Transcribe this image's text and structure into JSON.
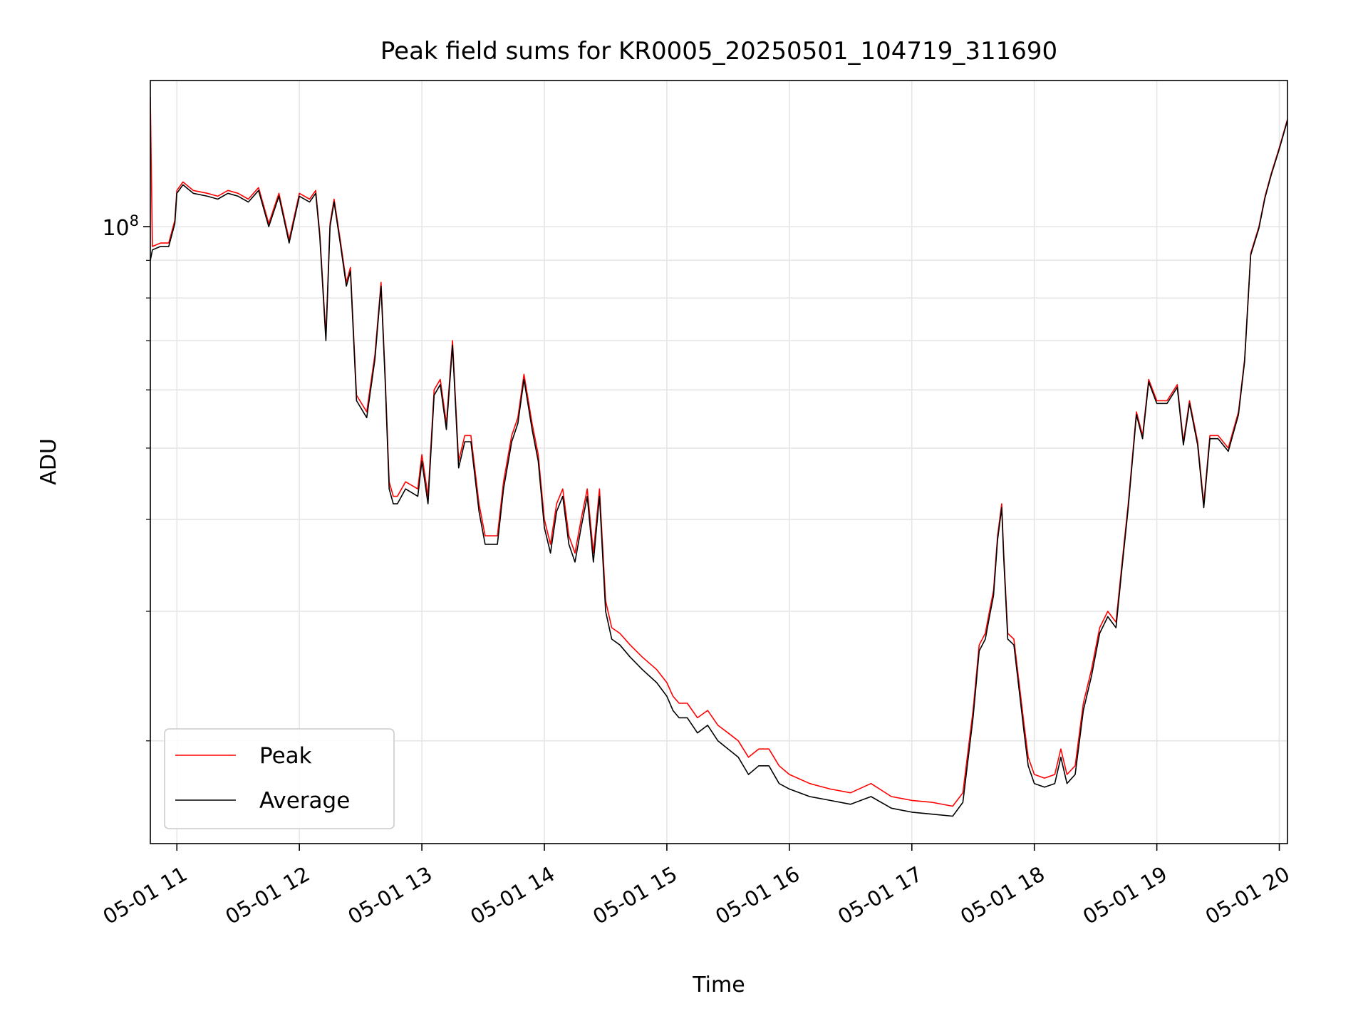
{
  "chart_data": {
    "type": "line",
    "title": "Peak field sums for KR0005_20250501_104719_311690",
    "xlabel": "Time",
    "ylabel": "ADU",
    "yscale": "log",
    "grid": true,
    "legend_position": "lower-left",
    "x_tick_labels": [
      "05-01 11",
      "05-01 12",
      "05-01 13",
      "05-01 14",
      "05-01 15",
      "05-01 16",
      "05-01 17",
      "05-01 18",
      "05-01 19",
      "05-01 20"
    ],
    "x_ticks": [
      "2025-05-01 11:00",
      "2025-05-01 12:00",
      "2025-05-01 13:00",
      "2025-05-01 14:00",
      "2025-05-01 15:00",
      "2025-05-01 16:00",
      "2025-05-01 17:00",
      "2025-05-01 18:00",
      "2025-05-01 19:00",
      "2025-05-01 20:00"
    ],
    "xlim": [
      "2025-05-01 10:47",
      "2025-05-01 20:04"
    ],
    "y_major_tick_label": {
      "base": "10",
      "exponent": "8"
    },
    "y_major_tick_value": 100000000,
    "y_minor_ticks": [
      20000000,
      30000000,
      40000000,
      50000000,
      60000000,
      70000000,
      80000000,
      90000000
    ],
    "ylim": [
      14500000,
      158000000
    ],
    "series": [
      {
        "name": "Peak",
        "color": "#ff0000",
        "x": [
          "2025-05-01 10:47",
          "2025-05-01 10:48",
          "2025-05-01 10:52",
          "2025-05-01 10:56",
          "2025-05-01 10:59",
          "2025-05-01 11:00",
          "2025-05-01 11:03",
          "2025-05-01 11:08",
          "2025-05-01 11:15",
          "2025-05-01 11:20",
          "2025-05-01 11:25",
          "2025-05-01 11:30",
          "2025-05-01 11:35",
          "2025-05-01 11:40",
          "2025-05-01 11:45",
          "2025-05-01 11:50",
          "2025-05-01 11:55",
          "2025-05-01 12:00",
          "2025-05-01 12:05",
          "2025-05-01 12:08",
          "2025-05-01 12:10",
          "2025-05-01 12:13",
          "2025-05-01 12:15",
          "2025-05-01 12:17",
          "2025-05-01 12:20",
          "2025-05-01 12:23",
          "2025-05-01 12:25",
          "2025-05-01 12:28",
          "2025-05-01 12:33",
          "2025-05-01 12:37",
          "2025-05-01 12:40",
          "2025-05-01 12:42",
          "2025-05-01 12:44",
          "2025-05-01 12:46",
          "2025-05-01 12:48",
          "2025-05-01 12:52",
          "2025-05-01 12:58",
          "2025-05-01 13:00",
          "2025-05-01 13:03",
          "2025-05-01 13:06",
          "2025-05-01 13:09",
          "2025-05-01 13:12",
          "2025-05-01 13:15",
          "2025-05-01 13:18",
          "2025-05-01 13:21",
          "2025-05-01 13:24",
          "2025-05-01 13:28",
          "2025-05-01 13:31",
          "2025-05-01 13:34",
          "2025-05-01 13:37",
          "2025-05-01 13:40",
          "2025-05-01 13:44",
          "2025-05-01 13:47",
          "2025-05-01 13:50",
          "2025-05-01 13:54",
          "2025-05-01 13:57",
          "2025-05-01 14:00",
          "2025-05-01 14:03",
          "2025-05-01 14:06",
          "2025-05-01 14:09",
          "2025-05-01 14:12",
          "2025-05-01 14:15",
          "2025-05-01 14:18",
          "2025-05-01 14:21",
          "2025-05-01 14:24",
          "2025-05-01 14:27",
          "2025-05-01 14:30",
          "2025-05-01 14:33",
          "2025-05-01 14:37",
          "2025-05-01 14:42",
          "2025-05-01 14:48",
          "2025-05-01 14:55",
          "2025-05-01 15:00",
          "2025-05-01 15:03",
          "2025-05-01 15:06",
          "2025-05-01 15:10",
          "2025-05-01 15:15",
          "2025-05-01 15:20",
          "2025-05-01 15:25",
          "2025-05-01 15:30",
          "2025-05-01 15:35",
          "2025-05-01 15:40",
          "2025-05-01 15:45",
          "2025-05-01 15:50",
          "2025-05-01 15:55",
          "2025-05-01 16:00",
          "2025-05-01 16:10",
          "2025-05-01 16:20",
          "2025-05-01 16:30",
          "2025-05-01 16:40",
          "2025-05-01 16:50",
          "2025-05-01 17:00",
          "2025-05-01 17:10",
          "2025-05-01 17:20",
          "2025-05-01 17:25",
          "2025-05-01 17:30",
          "2025-05-01 17:33",
          "2025-05-01 17:36",
          "2025-05-01 17:38",
          "2025-05-01 17:40",
          "2025-05-01 17:42",
          "2025-05-01 17:44",
          "2025-05-01 17:45",
          "2025-05-01 17:47",
          "2025-05-01 17:50",
          "2025-05-01 17:55",
          "2025-05-01 17:57",
          "2025-05-01 18:00",
          "2025-05-01 18:05",
          "2025-05-01 18:10",
          "2025-05-01 18:13",
          "2025-05-01 18:16",
          "2025-05-01 18:20",
          "2025-05-01 18:24",
          "2025-05-01 18:28",
          "2025-05-01 18:32",
          "2025-05-01 18:36",
          "2025-05-01 18:40",
          "2025-05-01 18:43",
          "2025-05-01 18:46",
          "2025-05-01 18:50",
          "2025-05-01 18:53",
          "2025-05-01 18:56",
          "2025-05-01 19:00",
          "2025-05-01 19:05",
          "2025-05-01 19:10",
          "2025-05-01 19:13",
          "2025-05-01 19:16",
          "2025-05-01 19:20",
          "2025-05-01 19:23",
          "2025-05-01 19:26",
          "2025-05-01 19:30",
          "2025-05-01 19:35",
          "2025-05-01 19:40",
          "2025-05-01 19:43",
          "2025-05-01 19:46",
          "2025-05-01 19:50",
          "2025-05-01 19:53",
          "2025-05-01 19:56",
          "2025-05-01 20:00",
          "2025-05-01 20:04"
        ],
        "values": [
          150000000,
          94000000,
          95000000,
          95000000,
          102000000,
          112000000,
          115000000,
          112000000,
          111000000,
          110000000,
          112000000,
          111000000,
          109000000,
          113000000,
          101000000,
          111000000,
          96000000,
          111000000,
          109000000,
          112000000,
          98000000,
          71000000,
          101000000,
          109000000,
          96000000,
          84000000,
          88000000,
          59000000,
          56000000,
          67000000,
          84000000,
          63000000,
          45000000,
          43000000,
          43000000,
          45000000,
          44000000,
          49000000,
          43000000,
          60000000,
          62000000,
          54000000,
          70000000,
          48000000,
          52000000,
          52000000,
          42000000,
          38000000,
          38000000,
          38000000,
          45000000,
          52000000,
          55000000,
          63000000,
          54000000,
          49000000,
          40000000,
          37000000,
          42000000,
          44000000,
          38000000,
          36000000,
          40000000,
          44000000,
          36000000,
          44000000,
          31000000,
          28500000,
          28000000,
          27000000,
          26000000,
          25000000,
          24000000,
          23000000,
          22500000,
          22500000,
          21500000,
          22000000,
          21000000,
          20500000,
          20000000,
          19000000,
          19500000,
          19500000,
          18500000,
          18000000,
          17500000,
          17200000,
          17000000,
          17500000,
          16800000,
          16600000,
          16500000,
          16300000,
          17000000,
          22000000,
          27000000,
          28000000,
          30000000,
          32000000,
          38000000,
          42000000,
          36000000,
          28000000,
          27500000,
          21000000,
          19000000,
          18000000,
          17800000,
          18000000,
          19500000,
          18000000,
          18500000,
          22500000,
          25000000,
          28500000,
          30000000,
          29000000,
          35000000,
          42000000,
          56000000,
          52000000,
          62000000,
          58000000,
          58000000,
          61000000,
          51000000,
          58000000,
          51000000,
          42000000,
          52000000,
          52000000,
          50000000,
          56000000,
          66000000,
          92000000,
          100000000,
          110000000,
          118000000,
          128000000,
          140000000
        ]
      },
      {
        "name": "Average",
        "color": "#000000",
        "x": [
          "2025-05-01 10:47",
          "2025-05-01 10:48",
          "2025-05-01 10:52",
          "2025-05-01 10:56",
          "2025-05-01 10:59",
          "2025-05-01 11:00",
          "2025-05-01 11:03",
          "2025-05-01 11:08",
          "2025-05-01 11:15",
          "2025-05-01 11:20",
          "2025-05-01 11:25",
          "2025-05-01 11:30",
          "2025-05-01 11:35",
          "2025-05-01 11:40",
          "2025-05-01 11:45",
          "2025-05-01 11:50",
          "2025-05-01 11:55",
          "2025-05-01 12:00",
          "2025-05-01 12:05",
          "2025-05-01 12:08",
          "2025-05-01 12:10",
          "2025-05-01 12:13",
          "2025-05-01 12:15",
          "2025-05-01 12:17",
          "2025-05-01 12:20",
          "2025-05-01 12:23",
          "2025-05-01 12:25",
          "2025-05-01 12:28",
          "2025-05-01 12:33",
          "2025-05-01 12:37",
          "2025-05-01 12:40",
          "2025-05-01 12:42",
          "2025-05-01 12:44",
          "2025-05-01 12:46",
          "2025-05-01 12:48",
          "2025-05-01 12:52",
          "2025-05-01 12:58",
          "2025-05-01 13:00",
          "2025-05-01 13:03",
          "2025-05-01 13:06",
          "2025-05-01 13:09",
          "2025-05-01 13:12",
          "2025-05-01 13:15",
          "2025-05-01 13:18",
          "2025-05-01 13:21",
          "2025-05-01 13:24",
          "2025-05-01 13:28",
          "2025-05-01 13:31",
          "2025-05-01 13:34",
          "2025-05-01 13:37",
          "2025-05-01 13:40",
          "2025-05-01 13:44",
          "2025-05-01 13:47",
          "2025-05-01 13:50",
          "2025-05-01 13:54",
          "2025-05-01 13:57",
          "2025-05-01 14:00",
          "2025-05-01 14:03",
          "2025-05-01 14:06",
          "2025-05-01 14:09",
          "2025-05-01 14:12",
          "2025-05-01 14:15",
          "2025-05-01 14:18",
          "2025-05-01 14:21",
          "2025-05-01 14:24",
          "2025-05-01 14:27",
          "2025-05-01 14:30",
          "2025-05-01 14:33",
          "2025-05-01 14:37",
          "2025-05-01 14:42",
          "2025-05-01 14:48",
          "2025-05-01 14:55",
          "2025-05-01 15:00",
          "2025-05-01 15:03",
          "2025-05-01 15:06",
          "2025-05-01 15:10",
          "2025-05-01 15:15",
          "2025-05-01 15:20",
          "2025-05-01 15:25",
          "2025-05-01 15:30",
          "2025-05-01 15:35",
          "2025-05-01 15:40",
          "2025-05-01 15:45",
          "2025-05-01 15:50",
          "2025-05-01 15:55",
          "2025-05-01 16:00",
          "2025-05-01 16:10",
          "2025-05-01 16:20",
          "2025-05-01 16:30",
          "2025-05-01 16:40",
          "2025-05-01 16:50",
          "2025-05-01 17:00",
          "2025-05-01 17:10",
          "2025-05-01 17:20",
          "2025-05-01 17:25",
          "2025-05-01 17:30",
          "2025-05-01 17:33",
          "2025-05-01 17:36",
          "2025-05-01 17:38",
          "2025-05-01 17:40",
          "2025-05-01 17:42",
          "2025-05-01 17:44",
          "2025-05-01 17:45",
          "2025-05-01 17:47",
          "2025-05-01 17:50",
          "2025-05-01 17:55",
          "2025-05-01 17:57",
          "2025-05-01 18:00",
          "2025-05-01 18:05",
          "2025-05-01 18:10",
          "2025-05-01 18:13",
          "2025-05-01 18:16",
          "2025-05-01 18:20",
          "2025-05-01 18:24",
          "2025-05-01 18:28",
          "2025-05-01 18:32",
          "2025-05-01 18:36",
          "2025-05-01 18:40",
          "2025-05-01 18:43",
          "2025-05-01 18:46",
          "2025-05-01 18:50",
          "2025-05-01 18:53",
          "2025-05-01 18:56",
          "2025-05-01 19:00",
          "2025-05-01 19:05",
          "2025-05-01 19:10",
          "2025-05-01 19:13",
          "2025-05-01 19:16",
          "2025-05-01 19:20",
          "2025-05-01 19:23",
          "2025-05-01 19:26",
          "2025-05-01 19:30",
          "2025-05-01 19:35",
          "2025-05-01 19:40",
          "2025-05-01 19:43",
          "2025-05-01 19:46",
          "2025-05-01 19:50",
          "2025-05-01 19:53",
          "2025-05-01 19:56",
          "2025-05-01 20:00",
          "2025-05-01 20:04"
        ],
        "values": [
          90000000,
          93000000,
          94000000,
          94000000,
          101000000,
          111000000,
          114000000,
          111000000,
          110000000,
          109000000,
          111000000,
          110000000,
          108000000,
          112000000,
          100000000,
          110000000,
          95000000,
          110000000,
          108000000,
          111000000,
          97000000,
          70000000,
          100000000,
          108000000,
          95000000,
          83000000,
          87000000,
          58000000,
          55000000,
          66000000,
          83000000,
          62000000,
          44000000,
          42000000,
          42000000,
          44000000,
          43000000,
          48000000,
          42000000,
          59000000,
          61000000,
          53000000,
          69000000,
          47000000,
          51000000,
          51000000,
          41000000,
          37000000,
          37000000,
          37000000,
          44000000,
          51000000,
          54000000,
          62000000,
          53000000,
          48000000,
          39000000,
          36000000,
          41000000,
          43000000,
          37000000,
          35000000,
          39000000,
          43000000,
          35000000,
          43000000,
          30000000,
          27500000,
          27000000,
          26000000,
          25000000,
          24000000,
          23000000,
          22000000,
          21500000,
          21500000,
          20500000,
          21000000,
          20000000,
          19500000,
          19000000,
          18000000,
          18500000,
          18500000,
          17500000,
          17200000,
          16800000,
          16600000,
          16400000,
          16800000,
          16200000,
          16000000,
          15900000,
          15800000,
          16500000,
          21500000,
          26500000,
          27500000,
          29500000,
          31500000,
          37500000,
          41500000,
          35500000,
          27500000,
          27000000,
          20500000,
          18500000,
          17500000,
          17300000,
          17500000,
          19000000,
          17500000,
          18000000,
          22000000,
          24500000,
          28000000,
          29500000,
          28500000,
          34500000,
          41500000,
          55500000,
          51500000,
          61500000,
          57500000,
          57500000,
          60500000,
          50500000,
          57500000,
          50500000,
          41500000,
          51500000,
          51500000,
          49500000,
          55500000,
          65500000,
          91500000,
          99500000,
          109500000,
          117500000,
          127500000,
          139500000
        ]
      }
    ]
  }
}
